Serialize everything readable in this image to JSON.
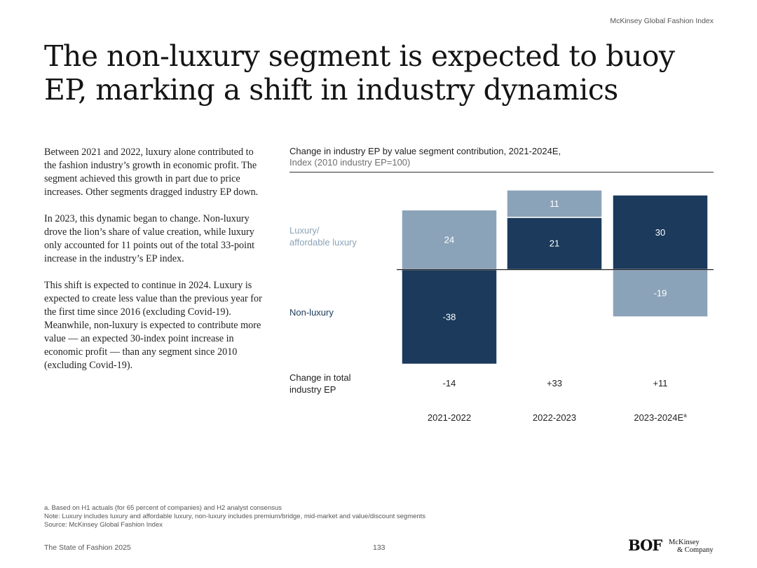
{
  "header": {
    "source": "McKinsey Global Fashion Index"
  },
  "title": "The non-luxury segment is expected to buoy EP, marking a shift in industry dynamics",
  "body": {
    "paragraphs": [
      "Between 2021 and 2022, luxury alone contributed to the fashion industry’s growth in economic profit. The segment achieved this growth in part due to price increases. Other segments dragged industry EP down.",
      "In 2023, this dynamic began to change. Non-luxury drove the lion’s share of value creation, while luxury only accounted for 11 points out of the total 33-point increase in the industry’s EP index.",
      "This shift is expected to continue in 2024. Luxury is expected to create less value than the previous year for the first time since 2016 (excluding Covid-19). Meanwhile, non-luxury is expected to contribute more value — an expected 30-index point increase in economic profit — than any segment since 2010 (excluding Covid-19)."
    ]
  },
  "chart_data": {
    "type": "bar",
    "stacked": true,
    "title": "Change in industry EP by value segment contribution, 2021-2024E,",
    "subtitle": "Index (2010 industry EP=100)",
    "categories": [
      "2021-2022",
      "2022-2023",
      "2023-2024E"
    ],
    "category_superscripts": [
      "",
      "",
      "a"
    ],
    "series": [
      {
        "name": "Luxury/ affordable luxury",
        "legend_line1": "Luxury/",
        "legend_line2": "affordable luxury",
        "color": "#8ba3b8",
        "values": [
          24,
          11,
          -19
        ]
      },
      {
        "name": "Non-luxury",
        "legend_line1": "Non-luxury",
        "color": "#1b3a5c",
        "values": [
          -38,
          21,
          30
        ]
      }
    ],
    "stack_order": [
      [
        "Luxury/ affordable luxury",
        "Non-luxury"
      ],
      [
        "Non-luxury",
        "Luxury/ affordable luxury"
      ],
      [
        "Non-luxury",
        "Luxury/ affordable luxury"
      ]
    ],
    "total_label_line1": "Change in total",
    "total_label_line2": "industry EP",
    "totals": [
      "-14",
      "+33",
      "+11"
    ]
  },
  "footnotes": [
    "a. Based on H1 actuals (for 65 percent of companies) and H2 analyst consensus",
    "Note: Luxury includes luxury and affordable luxury, non-luxury includes premium/bridge, mid-market and value/discount segments",
    "Source: McKinsey Global Fashion Index"
  ],
  "footer": {
    "report": "The State of Fashion 2025",
    "page": "133",
    "logo_bof": "BOF",
    "logo_mck_line1": "McKinsey",
    "logo_mck_line2": "& Company"
  }
}
